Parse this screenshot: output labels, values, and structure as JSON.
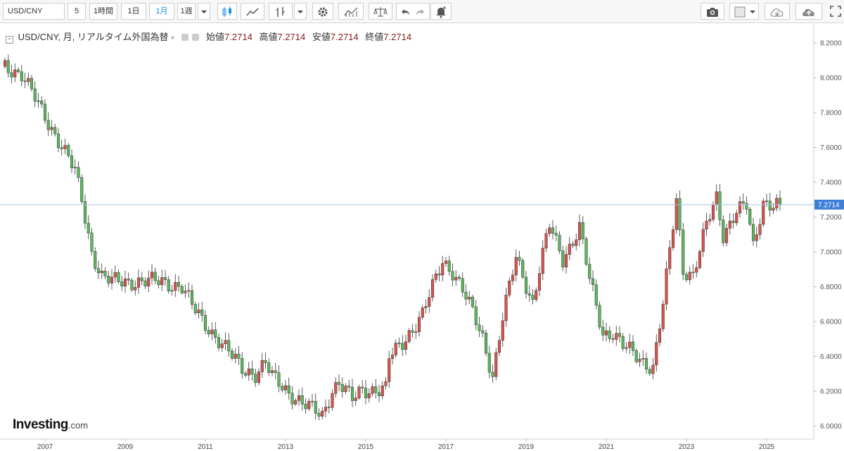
{
  "toolbar": {
    "symbol": "USD/CNY",
    "intervals": [
      "5",
      "1時間",
      "1日",
      "1月",
      "1週"
    ],
    "active_interval": "1月"
  },
  "legend": {
    "title": "USD/CNY, 月, リアルタイム外国為替",
    "open_label": "始値",
    "open": "7.2714",
    "high_label": "高値",
    "high": "7.2714",
    "low_label": "安値",
    "low": "7.2714",
    "close_label": "終値",
    "close": "7.2714"
  },
  "logo": {
    "brand": "Investing",
    "suffix": ".com"
  },
  "colors": {
    "up": "#5cb85c",
    "down": "#d9534f",
    "last_line": "#a9c4e8",
    "badge": "#3d7fd6"
  },
  "chart_data": {
    "type": "candlestick",
    "title": "USD/CNY, 月, リアルタイム外国為替",
    "ylim": [
      5.95,
      8.26
    ],
    "yticks": [
      "8.2000",
      "8.0000",
      "7.8000",
      "7.6000",
      "7.4000",
      "7.2000",
      "7.0000",
      "6.8000",
      "6.6000",
      "6.4000",
      "6.2000",
      "6.0000"
    ],
    "xticks": [
      "2007",
      "2009",
      "2011",
      "2013",
      "2015",
      "2017",
      "2019",
      "2021",
      "2023",
      "2025"
    ],
    "xlim": [
      "2006-01",
      "2025-12"
    ],
    "last_price": "7.2714",
    "grid": false,
    "anchors": [
      [
        "2006-01",
        8.07
      ],
      [
        "2006-06",
        8.02
      ],
      [
        "2006-12",
        7.81
      ],
      [
        "2007-06",
        7.61
      ],
      [
        "2007-10",
        7.46
      ],
      [
        "2007-12",
        7.3
      ],
      [
        "2008-03",
        7.0
      ],
      [
        "2008-06",
        6.86
      ],
      [
        "2008-09",
        6.83
      ],
      [
        "2009-12",
        6.83
      ],
      [
        "2010-06",
        6.8
      ],
      [
        "2010-09",
        6.69
      ],
      [
        "2010-12",
        6.61
      ],
      [
        "2011-06",
        6.47
      ],
      [
        "2011-12",
        6.33
      ],
      [
        "2012-04",
        6.3
      ],
      [
        "2012-07",
        6.36
      ],
      [
        "2012-09",
        6.28
      ],
      [
        "2012-12",
        6.23
      ],
      [
        "2013-06",
        6.13
      ],
      [
        "2013-12",
        6.06
      ],
      [
        "2014-03",
        6.21
      ],
      [
        "2014-05",
        6.25
      ],
      [
        "2014-09",
        6.15
      ],
      [
        "2014-12",
        6.21
      ],
      [
        "2015-07",
        6.21
      ],
      [
        "2015-08",
        6.39
      ],
      [
        "2015-12",
        6.48
      ],
      [
        "2016-06",
        6.64
      ],
      [
        "2016-12",
        6.95
      ],
      [
        "2017-03",
        6.89
      ],
      [
        "2017-06",
        6.78
      ],
      [
        "2017-09",
        6.65
      ],
      [
        "2017-12",
        6.51
      ],
      [
        "2018-03",
        6.29
      ],
      [
        "2018-06",
        6.62
      ],
      [
        "2018-10",
        6.97
      ],
      [
        "2019-03",
        6.71
      ],
      [
        "2019-05",
        6.9
      ],
      [
        "2019-08",
        7.15
      ],
      [
        "2019-12",
        6.96
      ],
      [
        "2020-05",
        7.14
      ],
      [
        "2020-08",
        6.84
      ],
      [
        "2020-12",
        6.53
      ],
      [
        "2021-03",
        6.54
      ],
      [
        "2021-06",
        6.46
      ],
      [
        "2021-12",
        6.37
      ],
      [
        "2022-03",
        6.34
      ],
      [
        "2022-06",
        6.7
      ],
      [
        "2022-10",
        7.3
      ],
      [
        "2022-12",
        6.9
      ],
      [
        "2023-03",
        6.87
      ],
      [
        "2023-07",
        7.15
      ],
      [
        "2023-10",
        7.31
      ],
      [
        "2023-12",
        7.1
      ],
      [
        "2024-04",
        7.24
      ],
      [
        "2024-07",
        7.26
      ],
      [
        "2024-09",
        7.02
      ],
      [
        "2024-12",
        7.29
      ],
      [
        "2025-05",
        7.2714
      ]
    ]
  }
}
